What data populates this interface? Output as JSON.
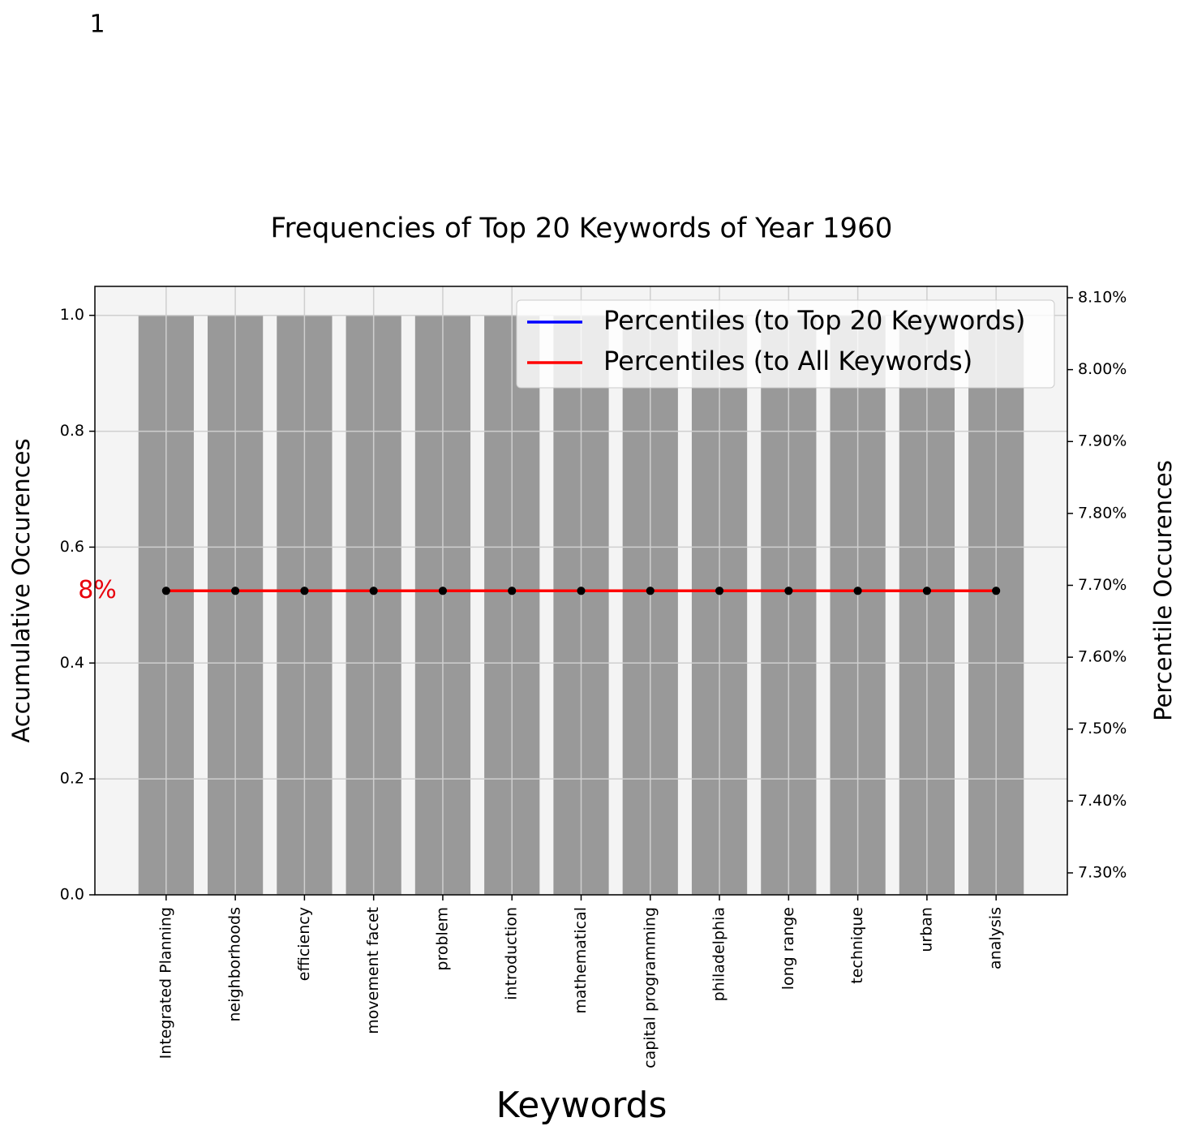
{
  "chart_data": {
    "type": "bar",
    "page_label": "1",
    "title": "Frequencies of Top 20 Keywords of Year 1960",
    "x_label": "Keywords",
    "y_label": "Accumulative Occurences",
    "y2_label": "Percentile Occurences",
    "annotation": {
      "text": "8%",
      "color": "#e8000b"
    },
    "categories": [
      "Integrated Planning",
      "neighborhoods",
      "efficiency",
      "movement facet",
      "problem",
      "introduction",
      "mathematical",
      "capital programming",
      "philadelphia",
      "long range",
      "technique",
      "urban",
      "analysis"
    ],
    "values": [
      1,
      1,
      1,
      1,
      1,
      1,
      1,
      1,
      1,
      1,
      1,
      1,
      1
    ],
    "color": "#999999",
    "series": [
      {
        "name": "Percentiles (to Top 20 Keywords)",
        "color": "#0000ff",
        "axis": "y2",
        "values": [
          7.6923,
          7.6923,
          7.6923,
          7.6923,
          7.6923,
          7.6923,
          7.6923,
          7.6923,
          7.6923,
          7.6923,
          7.6923,
          7.6923,
          7.6923
        ]
      },
      {
        "name": "Percentiles (to All Keywords)",
        "color": "#ff0000",
        "axis": "y2",
        "values": [
          7.6923,
          7.6923,
          7.6923,
          7.6923,
          7.6923,
          7.6923,
          7.6923,
          7.6923,
          7.6923,
          7.6923,
          7.6923,
          7.6923,
          7.6923
        ]
      }
    ],
    "ylim": [
      0,
      1.05
    ],
    "yticks": [
      {
        "value": 0,
        "label": "0.0"
      },
      0.2,
      0.4,
      0.6,
      0.8,
      {
        "value": 1,
        "label": "1.0"
      }
    ],
    "y2lim": [
      7.2695,
      8.1158
    ],
    "y2ticks": [
      {
        "value": 7.3,
        "label": "7.30%"
      },
      {
        "value": 7.4,
        "label": "7.40%"
      },
      {
        "value": 7.5,
        "label": "7.50%"
      },
      {
        "value": 7.6,
        "label": "7.60%"
      },
      {
        "value": 7.7,
        "label": "7.70%"
      },
      {
        "value": 7.8,
        "label": "7.80%"
      },
      {
        "value": 7.9,
        "label": "7.90%"
      },
      {
        "value": 8.0,
        "label": "8.00%"
      },
      {
        "value": 8.1,
        "label": "8.10%"
      }
    ],
    "grid": true,
    "legend": "upper right"
  }
}
